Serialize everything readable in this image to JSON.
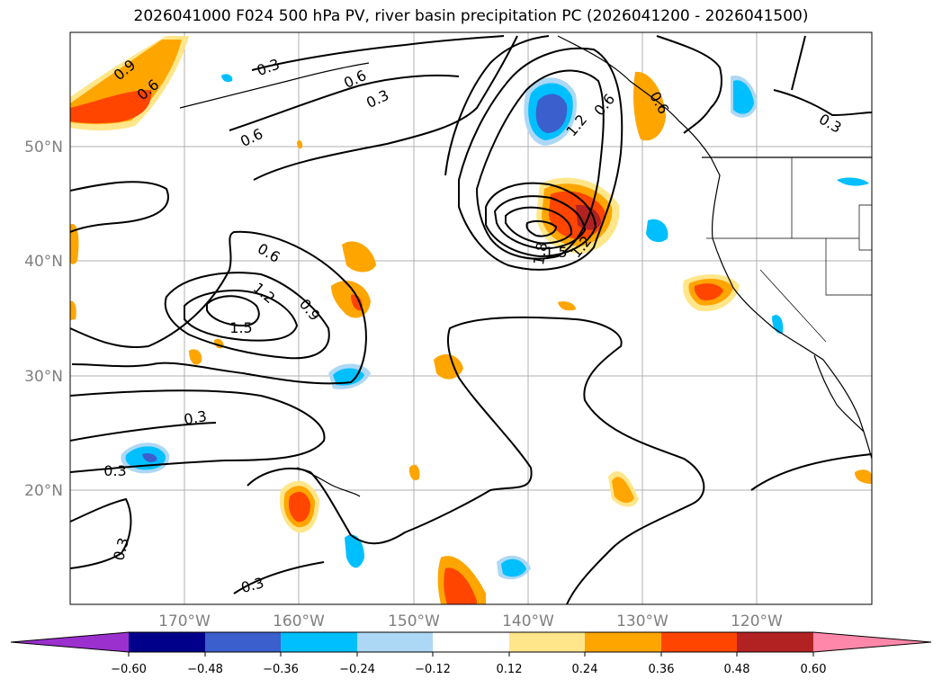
{
  "title": "2026041000 F024 500 hPa PV, river basin precipitation PC (2026041200 - 2026041500)",
  "map": {
    "lat_ticks": [
      "50°N",
      "40°N",
      "30°N",
      "20°N"
    ],
    "lon_ticks": [
      "170°W",
      "160°W",
      "150°W",
      "140°W",
      "130°W",
      "120°W"
    ]
  },
  "pv_contour_labels": [
    "0.9",
    "0.6",
    "0.3",
    "0.6",
    "0.3",
    "0.6",
    "0.6",
    "0.9",
    "1.2",
    "1.5",
    "0.3",
    "0.3",
    "0.3",
    "0.3",
    "1.2",
    "0.6",
    "1.8",
    "1.5",
    "1.2",
    "0.6",
    "0.3"
  ],
  "colorbar": {
    "ticks": [
      "−0.60",
      "−0.48",
      "−0.36",
      "−0.24",
      "−0.12",
      "0.12",
      "0.24",
      "0.36",
      "0.48",
      "0.60"
    ],
    "colors": [
      "#9b30cf",
      "#00008b",
      "#3b5fcd",
      "#00bfff",
      "#add8f5",
      "#ffffff",
      "#ffe68a",
      "#ffa500",
      "#ff4500",
      "#b22222",
      "#ff88aa"
    ]
  }
}
